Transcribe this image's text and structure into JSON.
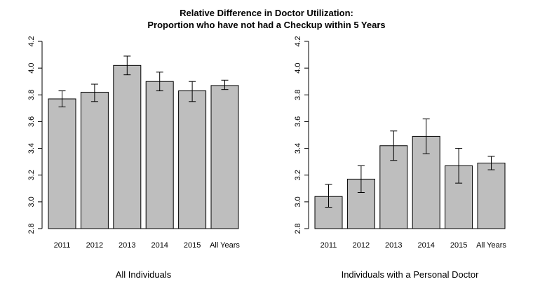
{
  "title_line1": "Relative Difference in Doctor Utilization:",
  "title_line2": "Proportion who have not had a Checkup within 5 Years",
  "chart_data": [
    {
      "type": "bar",
      "xlabel": "All Individuals",
      "categories": [
        "2011",
        "2012",
        "2013",
        "2014",
        "2015",
        "All Years"
      ],
      "values": [
        3.77,
        3.82,
        4.02,
        3.9,
        3.83,
        3.87
      ],
      "error_low": [
        3.71,
        3.75,
        3.95,
        3.83,
        3.75,
        3.84
      ],
      "error_high": [
        3.83,
        3.88,
        4.09,
        3.97,
        3.9,
        3.91
      ],
      "ylim": [
        2.8,
        4.2
      ],
      "yticks": [
        "2.8",
        "3.0",
        "3.2",
        "3.4",
        "3.6",
        "3.8",
        "4.0",
        "4.2"
      ],
      "bar_color": "#bebebe",
      "grid": false
    },
    {
      "type": "bar",
      "xlabel": "Individuals with a Personal Doctor",
      "categories": [
        "2011",
        "2012",
        "2013",
        "2014",
        "2015",
        "All Years"
      ],
      "values": [
        3.04,
        3.17,
        3.42,
        3.49,
        3.27,
        3.29
      ],
      "error_low": [
        2.96,
        3.07,
        3.31,
        3.36,
        3.14,
        3.24
      ],
      "error_high": [
        3.13,
        3.27,
        3.53,
        3.62,
        3.4,
        3.34
      ],
      "ylim": [
        2.8,
        4.2
      ],
      "yticks": [
        "2.8",
        "3.0",
        "3.2",
        "3.4",
        "3.6",
        "3.8",
        "4.0",
        "4.2"
      ],
      "bar_color": "#bebebe",
      "grid": false
    }
  ]
}
